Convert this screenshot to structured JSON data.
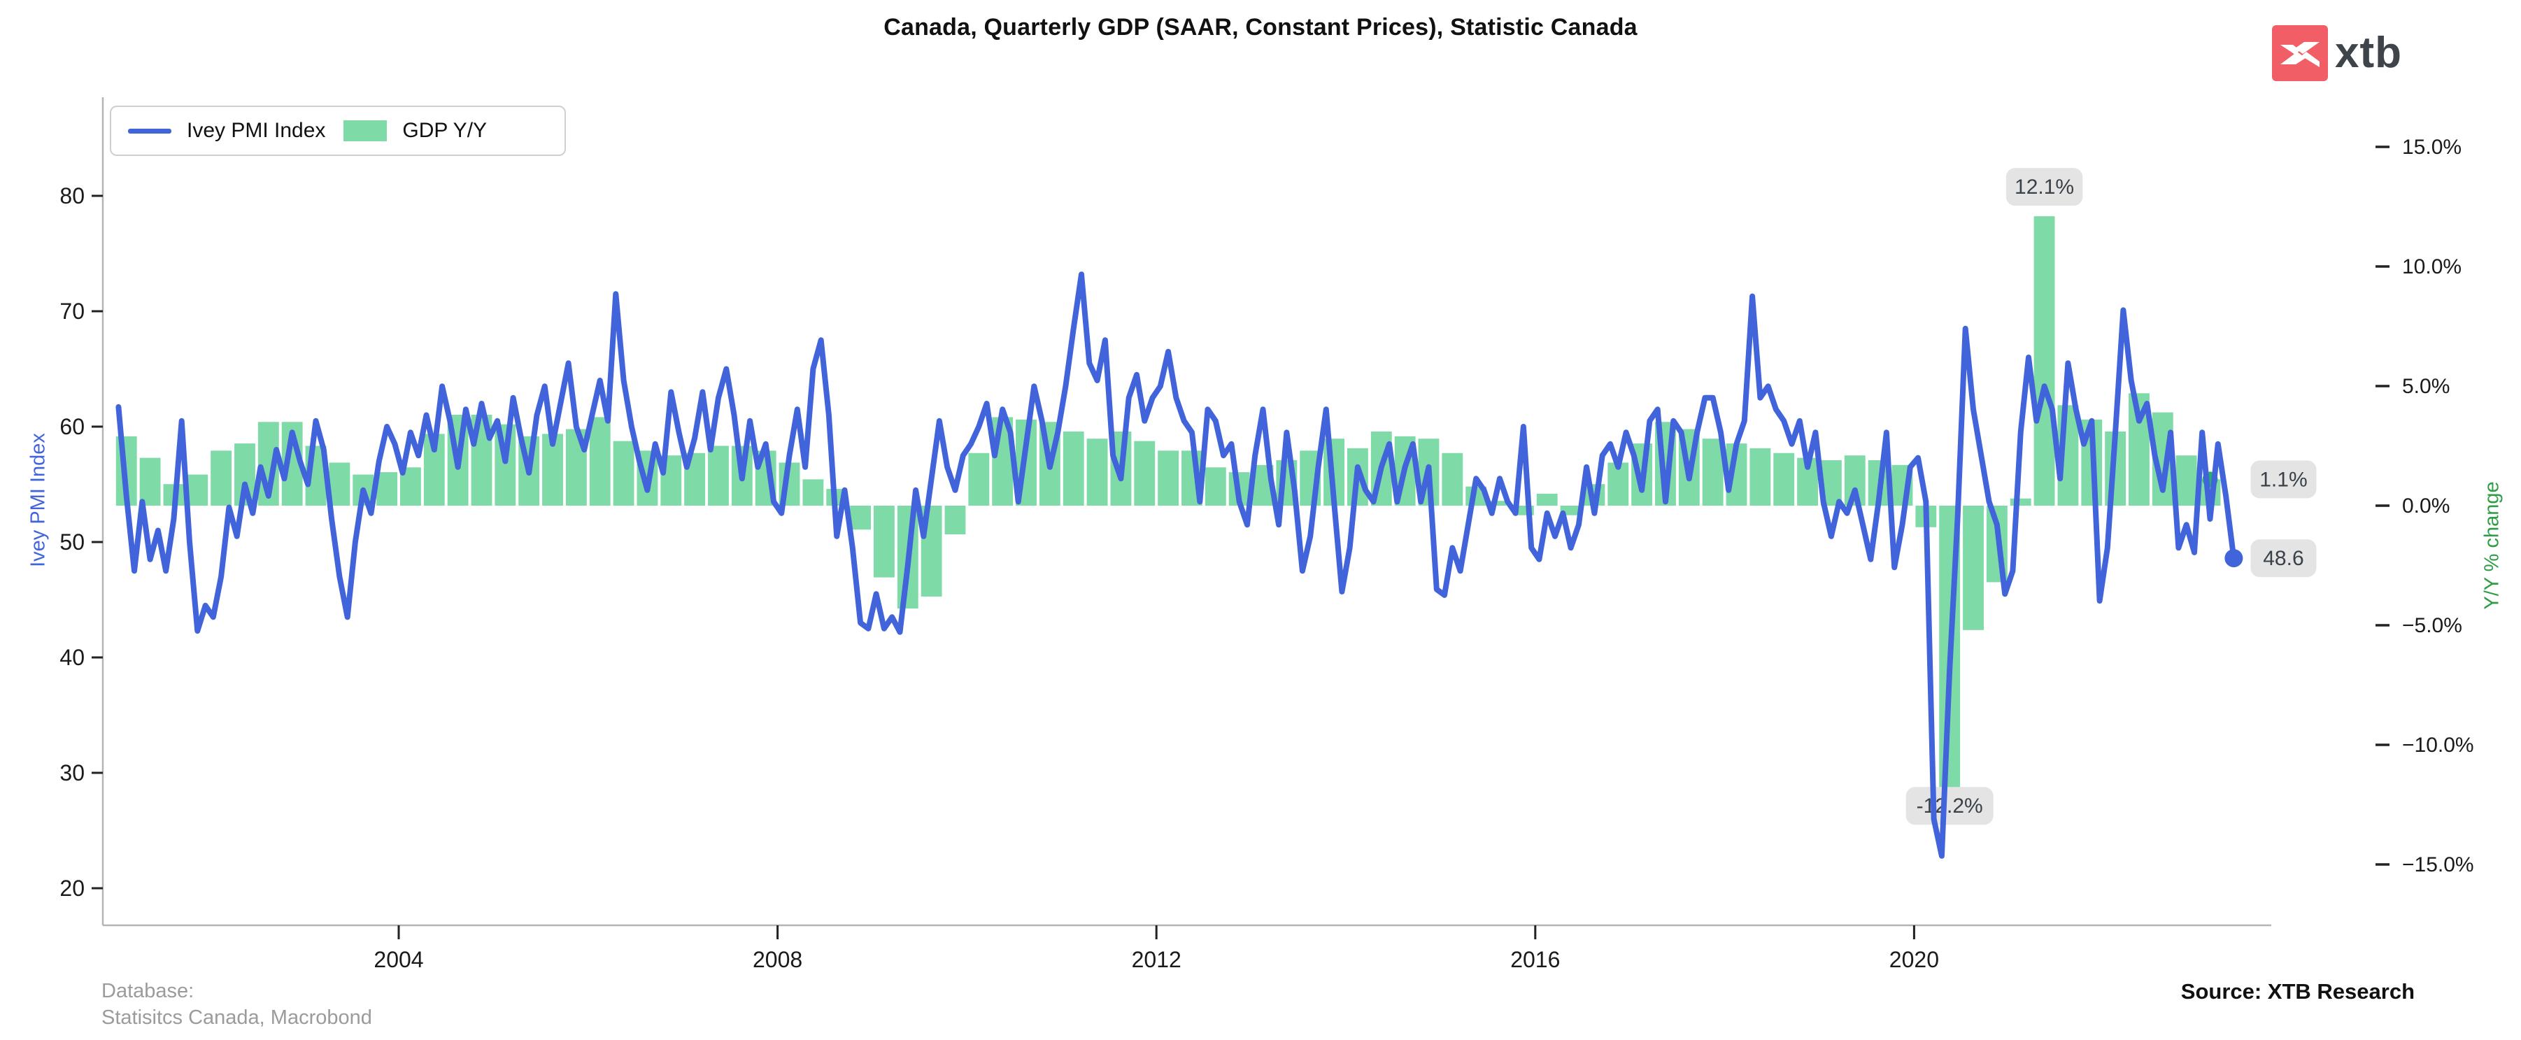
{
  "header": {
    "title": "Canada, Quarterly GDP (SAAR, Constant Prices), Statistic Canada",
    "logo_text": "xtb"
  },
  "legend": {
    "items": [
      {
        "label": "Ivey PMI Index",
        "swatch": "line"
      },
      {
        "label": "GDP Y/Y",
        "swatch": "bar"
      }
    ]
  },
  "footer": {
    "database_label": "Database:",
    "database_value": "Statisitcs Canada, Macrobond",
    "source": "Source: XTB Research"
  },
  "colors": {
    "line_blue": "#4264db",
    "bar_green": "#7edaa6",
    "marker_green": "#25b267",
    "annotation_bg": "#e4e4e4",
    "annotation_text": "#3a4149",
    "left_axis_label": "#4264db",
    "right_axis_label": "#2e9e44",
    "tick_text": "#1a1a1a",
    "spine_grey": "#b5b5b5",
    "tick_mark": "#222222",
    "logo_red": "#f25e66",
    "logo_dark": "#3f434a"
  },
  "chart_data": {
    "type": "line+bar",
    "title": "Canada, Quarterly GDP (SAAR, Constant Prices), Statistic Canada",
    "x_axis": {
      "ticks": [
        2004,
        2008,
        2012,
        2016,
        2020
      ],
      "range": [
        2000.85,
        2023.9
      ]
    },
    "left_axis": {
      "label": "Ivey PMI Index",
      "ticks": [
        80,
        70,
        60,
        50,
        40,
        30,
        20
      ],
      "range": [
        17,
        85
      ]
    },
    "right_axis": {
      "label": "Y/Y % change",
      "tick_labels": [
        "15.0%",
        "10.0%",
        "5.0%",
        "0.0%",
        "−5.0%",
        "−10.0%",
        "−15.0%"
      ],
      "tick_values": [
        15,
        10,
        5,
        0,
        -5,
        -10,
        -15
      ]
    },
    "grid": false,
    "legend_position": "upper-left",
    "series": [
      {
        "name": "Ivey PMI Index",
        "type": "line",
        "axis": "left",
        "frequency": "monthly",
        "start_year": 2001,
        "end_label": "48.6",
        "values": [
          61.7,
          54,
          47.5,
          53.5,
          48.5,
          51,
          47.5,
          52,
          60.5,
          50,
          42.3,
          44.5,
          43.5,
          47,
          53,
          50.5,
          55,
          52.5,
          56.5,
          54,
          58,
          55.5,
          59.5,
          57,
          55,
          60.5,
          58,
          52,
          47,
          43.5,
          50,
          54.5,
          52.5,
          57,
          60,
          58.5,
          56,
          59.5,
          57.5,
          61,
          58,
          63.5,
          60.5,
          56.5,
          61.5,
          58.5,
          62,
          59,
          60.5,
          57,
          62.5,
          59,
          56,
          61,
          63.5,
          58.5,
          62,
          65.5,
          60,
          58,
          61,
          64,
          60.5,
          71.5,
          64,
          60,
          57,
          54.5,
          58.5,
          56,
          63,
          59.5,
          56.5,
          59,
          63,
          58,
          62.5,
          65,
          61,
          55.5,
          60.5,
          56.5,
          58.5,
          53.5,
          52.5,
          57.5,
          61.5,
          56.5,
          65,
          67.5,
          61,
          50.5,
          54.5,
          49.5,
          43,
          42.5,
          45.5,
          42.5,
          43.5,
          42.2,
          48,
          54.5,
          50.5,
          55.5,
          60.5,
          56.5,
          54.5,
          57.5,
          58.5,
          60,
          62,
          57.5,
          61.5,
          59.5,
          53.5,
          58.5,
          63.5,
          60.5,
          56.5,
          59.5,
          63.5,
          68.5,
          73.2,
          65.5,
          64,
          67.5,
          57.5,
          55.5,
          62.5,
          64.5,
          60.5,
          62.5,
          63.5,
          66.5,
          62.5,
          60.5,
          59.5,
          53.5,
          61.5,
          60.5,
          57.5,
          58.5,
          53.5,
          51.5,
          57.5,
          61.5,
          55.5,
          51.5,
          59.5,
          54.5,
          47.5,
          50.5,
          56.5,
          61.5,
          53.5,
          45.7,
          49.5,
          56.5,
          54.5,
          53.5,
          56.5,
          58.5,
          53.5,
          56.5,
          58.5,
          53.5,
          56.5,
          45.9,
          45.4,
          49.5,
          47.5,
          51.5,
          55.5,
          54.5,
          52.5,
          55.5,
          53.5,
          52.5,
          60,
          49.5,
          48.5,
          52.5,
          50.5,
          52.5,
          49.5,
          51.5,
          56.5,
          52.5,
          57.5,
          58.5,
          56.5,
          59.5,
          57.5,
          54.5,
          60.5,
          61.5,
          53.5,
          60.5,
          59.5,
          55.5,
          59.5,
          62.5,
          62.5,
          59.5,
          54.5,
          58.5,
          60.5,
          71.3,
          62.5,
          63.5,
          61.5,
          60.5,
          58.5,
          60.5,
          56.5,
          59.5,
          53.5,
          50.5,
          53.5,
          52.5,
          54.5,
          51.5,
          48.5,
          53.5,
          59.5,
          47.8,
          51.5,
          56.5,
          57.3,
          53.5,
          26,
          22.8,
          39,
          52,
          68.5,
          61.5,
          57.5,
          53.5,
          51.5,
          45.5,
          47.5,
          59.5,
          66,
          60.5,
          63.5,
          61.5,
          55.5,
          65.5,
          61.5,
          58.5,
          60.5,
          44.9,
          49.5,
          59.5,
          70.1,
          64,
          60.5,
          62,
          57.5,
          54.5,
          59.5,
          49.5,
          51.5,
          49.1,
          59.5,
          52,
          58.5,
          54,
          48.6
        ]
      },
      {
        "name": "GDP Y/Y",
        "type": "bar",
        "axis": "right",
        "frequency": "quarterly",
        "start_year": 2001,
        "end_label": "1.1%",
        "values": [
          2.9,
          2.0,
          0.9,
          1.3,
          2.3,
          2.6,
          3.5,
          3.5,
          2.5,
          1.8,
          1.3,
          1.4,
          1.6,
          3.0,
          3.8,
          3.8,
          3.4,
          2.9,
          3.0,
          3.2,
          3.7,
          2.7,
          2.3,
          2.1,
          2.2,
          2.5,
          2.5,
          2.3,
          1.8,
          1.1,
          0.7,
          -1.0,
          -3.0,
          -4.3,
          -3.8,
          -1.2,
          2.2,
          3.7,
          3.6,
          3.5,
          3.1,
          2.8,
          3.1,
          2.7,
          2.3,
          2.3,
          1.6,
          1.4,
          1.7,
          1.9,
          2.3,
          2.8,
          2.4,
          3.1,
          2.9,
          2.8,
          2.2,
          0.8,
          0.2,
          -0.4,
          0.5,
          -0.4,
          0.9,
          1.8,
          2.6,
          3.5,
          3.2,
          2.8,
          2.6,
          2.4,
          2.2,
          2.0,
          1.9,
          2.1,
          1.9,
          1.7,
          -0.9,
          -12.2,
          -5.2,
          -3.2,
          0.3,
          12.1,
          4.2,
          3.6,
          3.1,
          4.7,
          3.9,
          2.1,
          1.1
        ]
      }
    ],
    "annotations": [
      {
        "text": "12.1%",
        "series": "GDP Y/Y",
        "x_year": 2021.375,
        "value": 12.1,
        "position": "above"
      },
      {
        "text": "-12.2%",
        "series": "GDP Y/Y",
        "x_year": 2020.375,
        "value": -12.2,
        "position": "below"
      },
      {
        "text": "1.1%",
        "series": "GDP Y/Y",
        "x_year": 2023.9,
        "value": 1.1,
        "position": "right"
      },
      {
        "text": "48.6",
        "series": "Ivey PMI Index",
        "x_year": 2023.9,
        "value": 48.6,
        "position": "right"
      }
    ]
  }
}
